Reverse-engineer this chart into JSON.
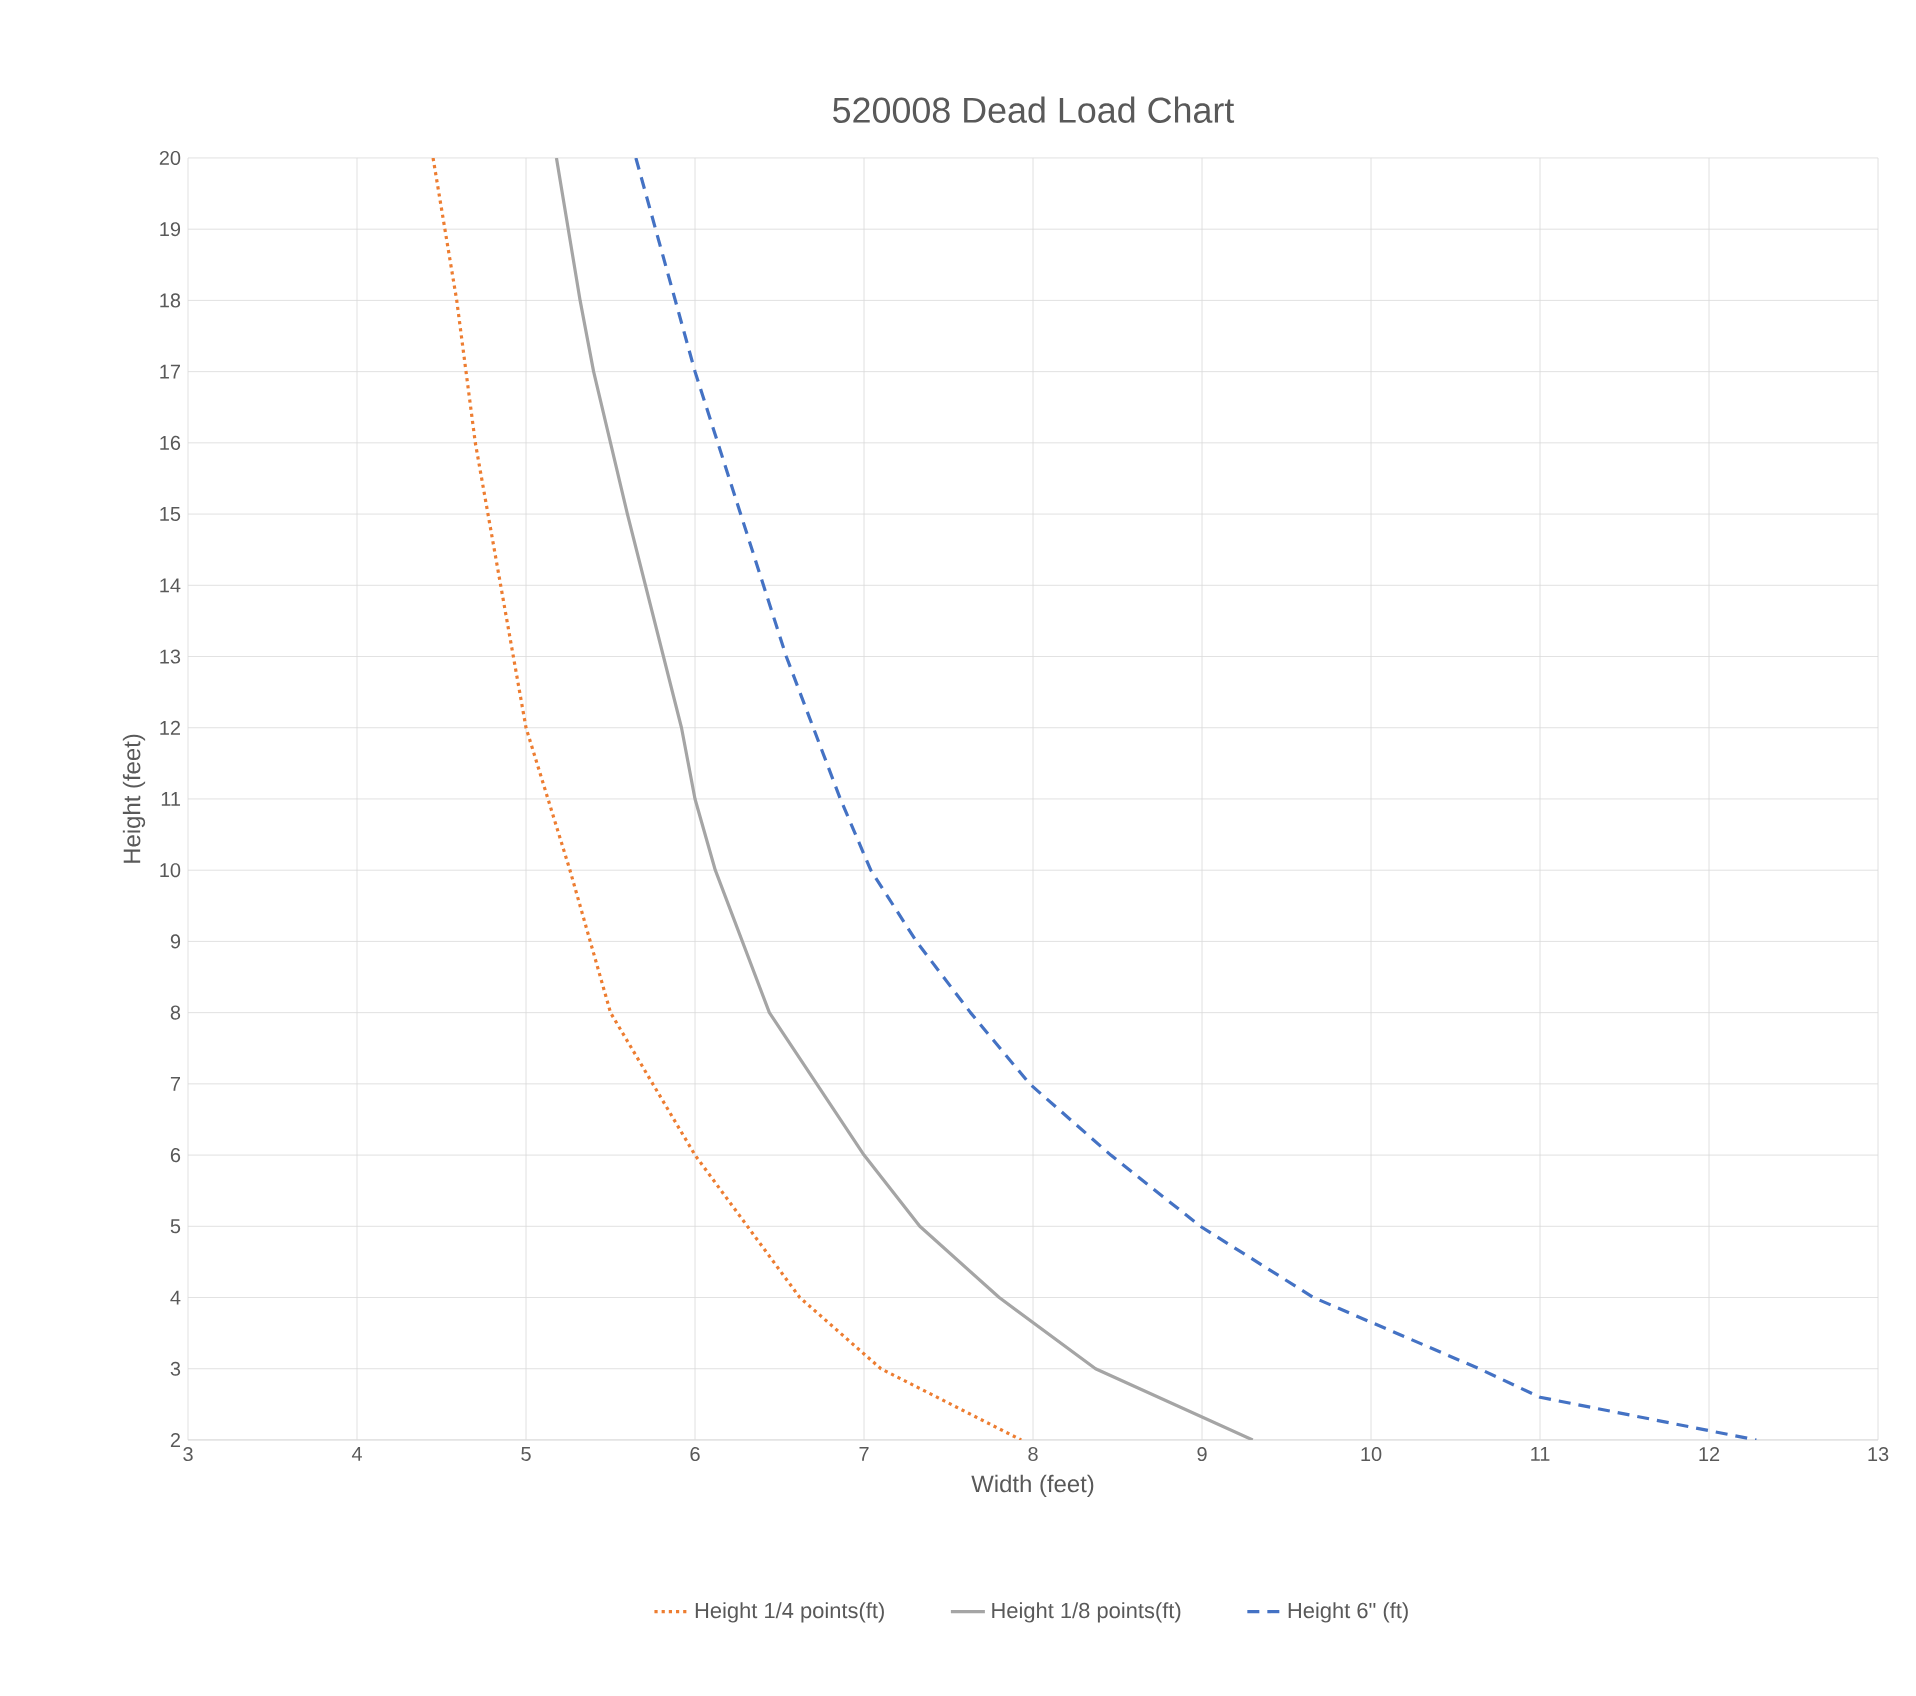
{
  "chart_data": {
    "type": "line",
    "title": "520008 Dead Load Chart",
    "xlabel": "Width (feet)",
    "ylabel": "Height (feet)",
    "xlim": [
      3,
      13
    ],
    "ylim": [
      2,
      20
    ],
    "xticks": [
      3,
      4,
      5,
      6,
      7,
      8,
      9,
      10,
      11,
      12,
      13
    ],
    "yticks": [
      2,
      3,
      4,
      5,
      6,
      7,
      8,
      9,
      10,
      11,
      12,
      13,
      14,
      15,
      16,
      17,
      18,
      19,
      20
    ],
    "grid": true,
    "legend": "bottom",
    "marker": "none",
    "series": [
      {
        "name": "Height 1/4 points(ft)",
        "color": "#ed7d31",
        "line_style": "dotted",
        "x": [
          4.45,
          4.59,
          4.7,
          4.85,
          5.0,
          5.26,
          5.5,
          6.0,
          6.62,
          7.1,
          7.93
        ],
        "values": [
          20,
          18,
          16,
          14,
          12,
          10,
          8,
          6,
          4,
          3,
          2
        ]
      },
      {
        "name": "Height 1/8 points(ft)",
        "color": "#a5a5a5",
        "line_style": "solid",
        "x": [
          5.18,
          5.32,
          5.4,
          5.6,
          5.92,
          6.0,
          6.12,
          6.44,
          6.72,
          7.0,
          7.33,
          7.8,
          8.37,
          9.3
        ],
        "values": [
          20,
          18,
          17,
          15,
          12,
          11,
          10,
          8,
          7,
          6,
          5,
          4,
          3,
          2
        ]
      },
      {
        "name": "Height 6\" (ft)",
        "color": "#4472c4",
        "line_style": "dashed",
        "x": [
          5.65,
          6.0,
          6.27,
          6.54,
          6.86,
          7.04,
          7.31,
          7.63,
          7.98,
          8.46,
          8.99,
          9.66,
          10.64,
          11.0,
          12.28
        ],
        "values": [
          20,
          17,
          15,
          13,
          11,
          10,
          9,
          8,
          7,
          6,
          5,
          4,
          3,
          2.6,
          2
        ]
      }
    ]
  }
}
